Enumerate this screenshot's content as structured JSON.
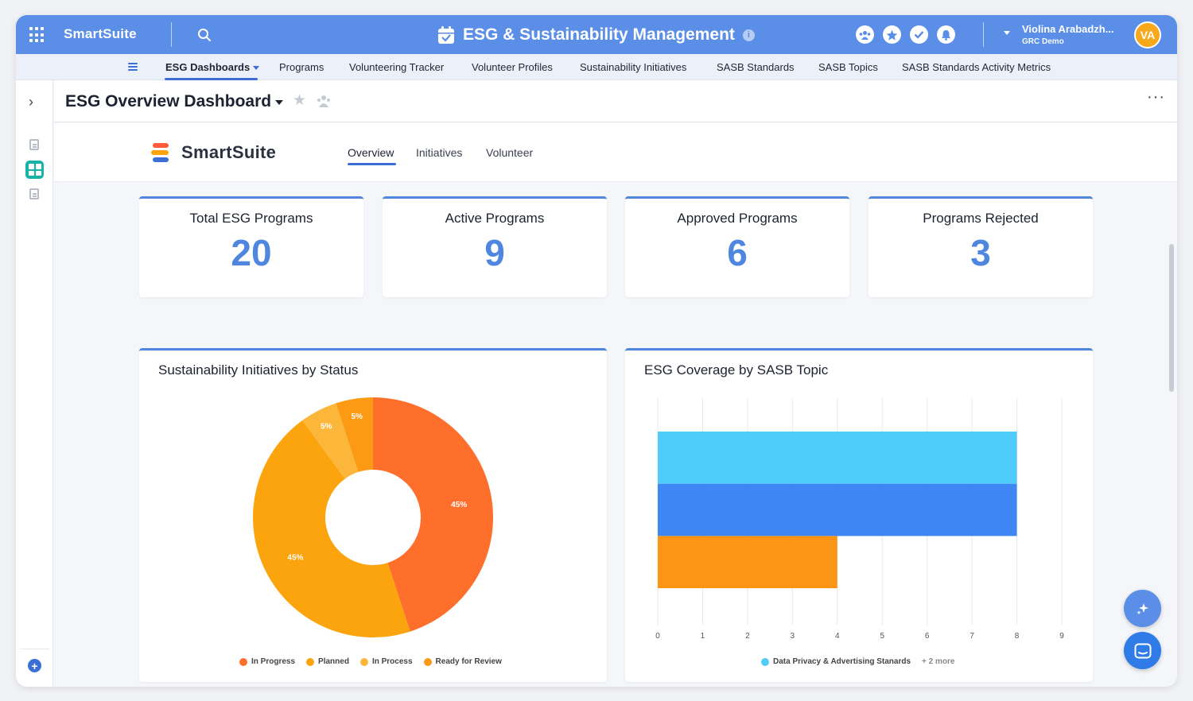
{
  "topbar": {
    "brand": "SmartSuite",
    "app_title": "ESG & Sustainability Management",
    "info": "i",
    "user_name": "Violina Arabadzh...",
    "user_org": "GRC Demo",
    "avatar_initials": "VA",
    "icons": [
      "apps-grid-icon",
      "search-icon",
      "calendar-icon",
      "team-icon",
      "star-icon",
      "check-icon",
      "bell-icon"
    ]
  },
  "nav": {
    "items": [
      "ESG Dashboards",
      "Programs",
      "Volunteering Tracker",
      "Volunteer Profiles",
      "Sustainability Initiatives",
      "SASB Standards",
      "SASB Topics",
      "SASB Standards Activity Metrics"
    ]
  },
  "dashboard": {
    "title": "ESG Overview Dashboard",
    "more": "···",
    "logo_text": "SmartSuite",
    "tabs": [
      "Overview",
      "Initiatives",
      "Volunteer"
    ]
  },
  "kpis": [
    {
      "title": "Total ESG Programs",
      "value": "20"
    },
    {
      "title": "Active Programs",
      "value": "9"
    },
    {
      "title": "Approved Programs",
      "value": "6"
    },
    {
      "title": "Programs Rejected",
      "value": "3"
    }
  ],
  "colors": {
    "accent": "#4f86e0",
    "topbar": "#5b8ee6",
    "in_progress": "#ff6f2c",
    "planned": "#fba40e",
    "in_process": "#fcb73b",
    "ready_for_review": "#fc9a13"
  },
  "chart_data": [
    {
      "type": "pie",
      "title": "Sustainability Initiatives by Status",
      "donut": true,
      "slices": [
        {
          "label": "In Progress",
          "value": 45,
          "text": "45%",
          "color": "#ff6f2c"
        },
        {
          "label": "Planned",
          "value": 45,
          "text": "45%",
          "color": "#fba40e"
        },
        {
          "label": "In Process",
          "value": 5,
          "text": "5%",
          "color": "#fcb73b"
        },
        {
          "label": "Ready for Review",
          "value": 5,
          "text": "5%",
          "color": "#fc9a13"
        }
      ],
      "legend": [
        "In Progress",
        "Planned",
        "In Process",
        "Ready for Review"
      ]
    },
    {
      "type": "bar",
      "orientation": "horizontal",
      "title": "ESG Coverage by SASB Topic",
      "values": [
        8,
        8,
        4
      ],
      "colors": [
        "#4fcbf9",
        "#3d86f4",
        "#fc9414"
      ],
      "xlim": [
        0,
        9
      ],
      "xticks": [
        "0",
        "1",
        "2",
        "3",
        "4",
        "5",
        "6",
        "7",
        "8",
        "9"
      ],
      "legend": [
        "Data Privacy & Advertising Stanards"
      ],
      "legend_more": "+ 2 more"
    }
  ]
}
